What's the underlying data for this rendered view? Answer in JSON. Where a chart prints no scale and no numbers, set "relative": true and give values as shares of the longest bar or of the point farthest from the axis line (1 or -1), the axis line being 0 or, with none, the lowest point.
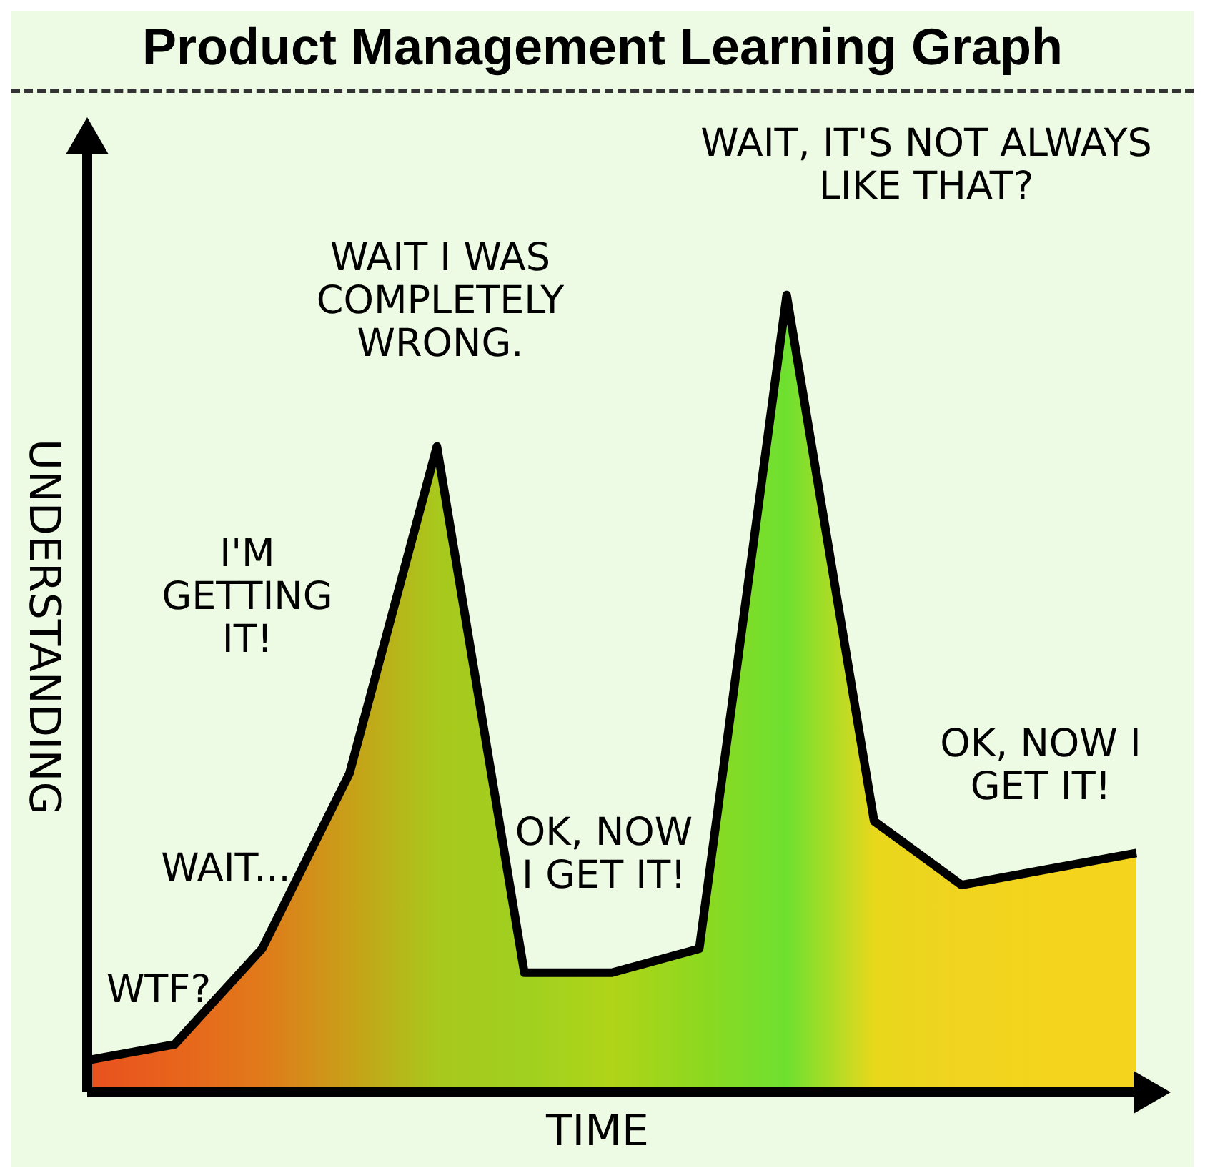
{
  "chart_data": {
    "type": "area",
    "title": "Product Management Learning Graph",
    "xlabel": "TIME",
    "ylabel": "UNDERSTANDING",
    "relative": true,
    "categories": [
      null,
      null,
      null,
      null,
      null,
      null,
      null,
      null,
      null,
      null,
      null,
      null,
      null
    ],
    "series": [
      {
        "color": "#000000",
        "values": [
          0.04,
          0.06,
          0.18,
          0.4,
          0.81,
          0.15,
          0.15,
          0.18,
          1,
          0.34,
          0.26,
          0.28,
          0.3
        ],
        "colors": [
          "#e8501e",
          "#e8641c",
          "#e07a1a",
          "#c8a018",
          "#a8c81c",
          "#a0d020",
          "#b0d418",
          "#8ed820",
          "#6ee030",
          "#e8d81c",
          "#f0d420",
          "#f4d41c",
          "#f4d41c"
        ]
      }
    ],
    "annotations": [
      "WTF?",
      "WAIT...",
      "I'M GETTING IT!",
      "WAIT I WAS COMPLETELY WRONG.",
      "OK, NOW I GET IT!",
      "WAIT, IT'S NOT ALWAYS LIKE THAT?",
      "OK, NOW I GET IT!"
    ]
  }
}
